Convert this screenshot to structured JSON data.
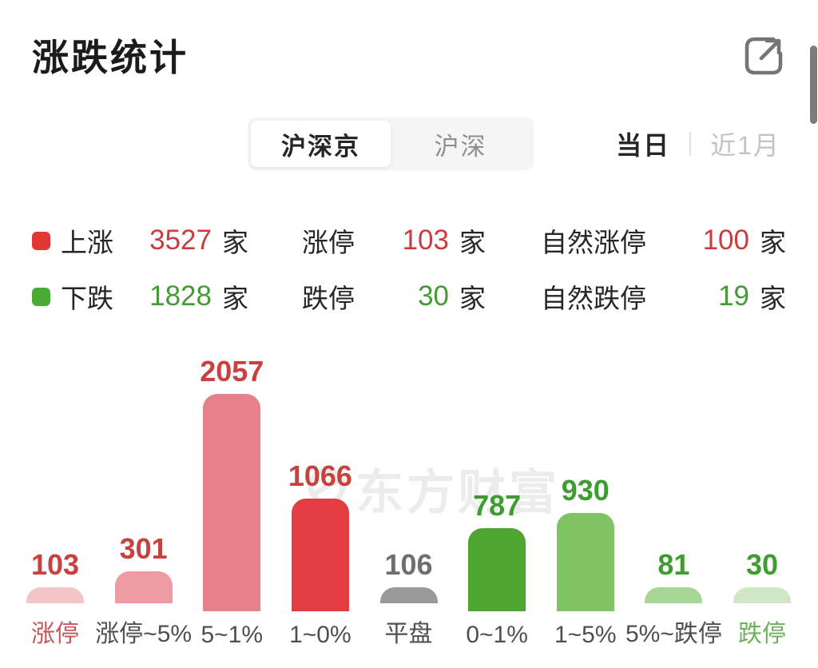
{
  "header": {
    "title": "涨跌统计"
  },
  "market_tabs": {
    "items": [
      {
        "label": "沪深京",
        "active": true
      },
      {
        "label": "沪深",
        "active": false
      }
    ]
  },
  "period_tabs": {
    "items": [
      {
        "label": "当日",
        "active": true
      },
      {
        "label": "近1月",
        "active": false
      }
    ]
  },
  "stats": {
    "rows": [
      {
        "legend_color": "#e13834",
        "name": "上涨",
        "value": "3527",
        "unit": "家",
        "col2_name": "涨停",
        "col2_value": "103",
        "col2_unit": "家",
        "col3_name": "自然涨停",
        "col3_value": "100",
        "col3_unit": "家",
        "value_color": "#c93d3f"
      },
      {
        "legend_color": "#49ab36",
        "name": "下跌",
        "value": "1828",
        "unit": "家",
        "col2_name": "跌停",
        "col2_value": "30",
        "col2_unit": "家",
        "col3_name": "自然跌停",
        "col3_value": "19",
        "col3_unit": "家",
        "value_color": "#449a35"
      }
    ]
  },
  "watermark": {
    "text": "东方财富"
  },
  "chart_data": {
    "type": "bar",
    "title": "涨跌统计",
    "categories": [
      "涨停",
      "涨停~5%",
      "5~1%",
      "1~0%",
      "平盘",
      "0~1%",
      "1~5%",
      "5%~跌停",
      "跌停"
    ],
    "values": [
      103,
      301,
      2057,
      1066,
      106,
      787,
      930,
      81,
      30
    ],
    "bar_colors": [
      "#f3c4c8",
      "#ee9ba3",
      "#e8808a",
      "#e23d40",
      "#9a9a9a",
      "#4ea52f",
      "#7fc365",
      "#a6d594",
      "#cfe7c4"
    ],
    "value_label_colors": [
      "#c9413f",
      "#c9413f",
      "#c9413f",
      "#c9413f",
      "#6f6f6f",
      "#3e9c31",
      "#3e9c31",
      "#3e9c31",
      "#3e9c31"
    ],
    "category_label_colors": [
      "#c4565b",
      "#4f4f4f",
      "#4f4f4f",
      "#4f4f4f",
      "#4f4f4f",
      "#4f4f4f",
      "#4f4f4f",
      "#4f4f4f",
      "#6bb35b"
    ],
    "ylim": [
      0,
      2057
    ],
    "grid": "off",
    "legend_position": "none",
    "value_labels": "above bars",
    "unit": "家"
  }
}
